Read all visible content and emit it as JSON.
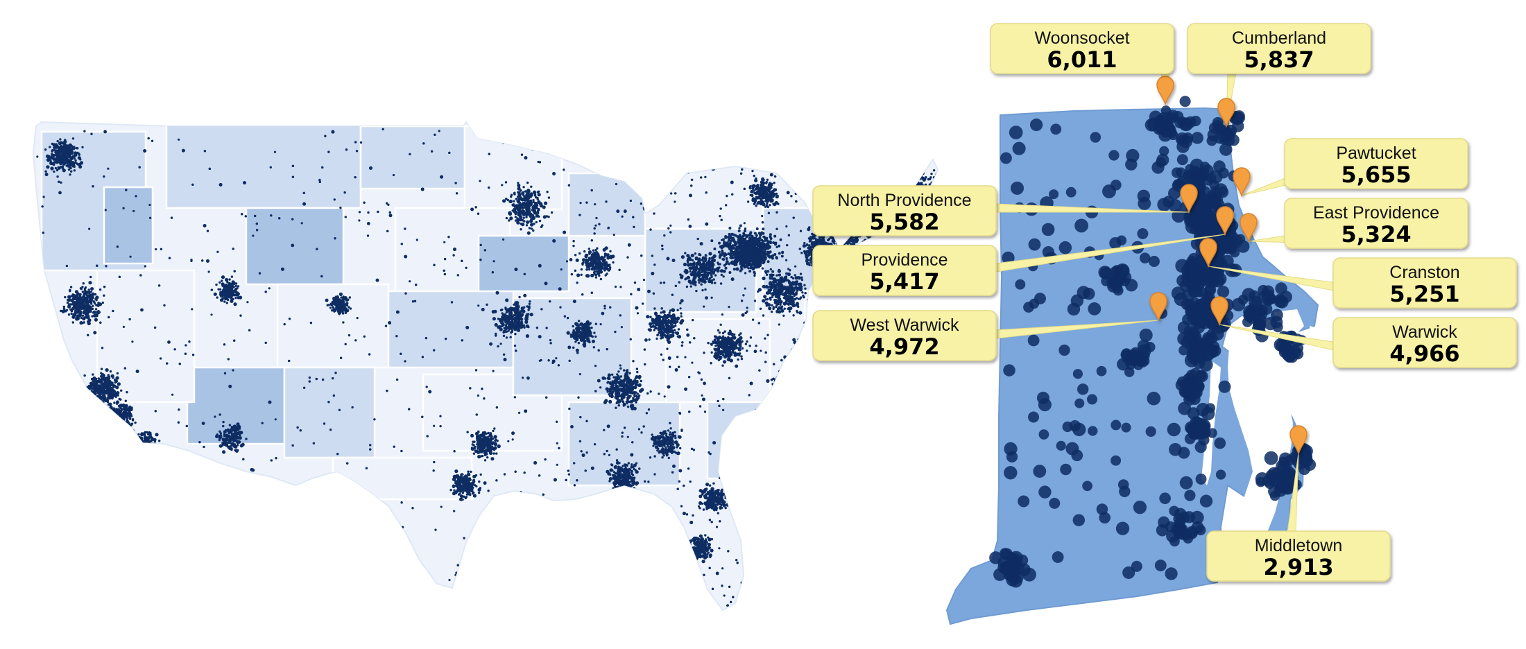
{
  "map": {
    "colors": {
      "us_fill_light": "#eef3fb",
      "us_fill_mid": "#cddcf0",
      "us_fill_dark": "#a9c3e4",
      "ri_fill": "#7ba7dc",
      "point": "#0e2d63",
      "callout_fill": "#f8f2a6",
      "pin": "#f5a040"
    },
    "callouts": [
      {
        "name": "Woonsocket",
        "value": "6,011"
      },
      {
        "name": "Cumberland",
        "value": "5,837"
      },
      {
        "name": "Pawtucket",
        "value": "5,655"
      },
      {
        "name": "North Providence",
        "value": "5,582"
      },
      {
        "name": "East Providence",
        "value": "5,324"
      },
      {
        "name": "Providence",
        "value": "5,417"
      },
      {
        "name": "Cranston",
        "value": "5,251"
      },
      {
        "name": "West Warwick",
        "value": "4,972"
      },
      {
        "name": "Warwick",
        "value": "4,966"
      },
      {
        "name": "Middletown",
        "value": "2,913"
      }
    ]
  }
}
